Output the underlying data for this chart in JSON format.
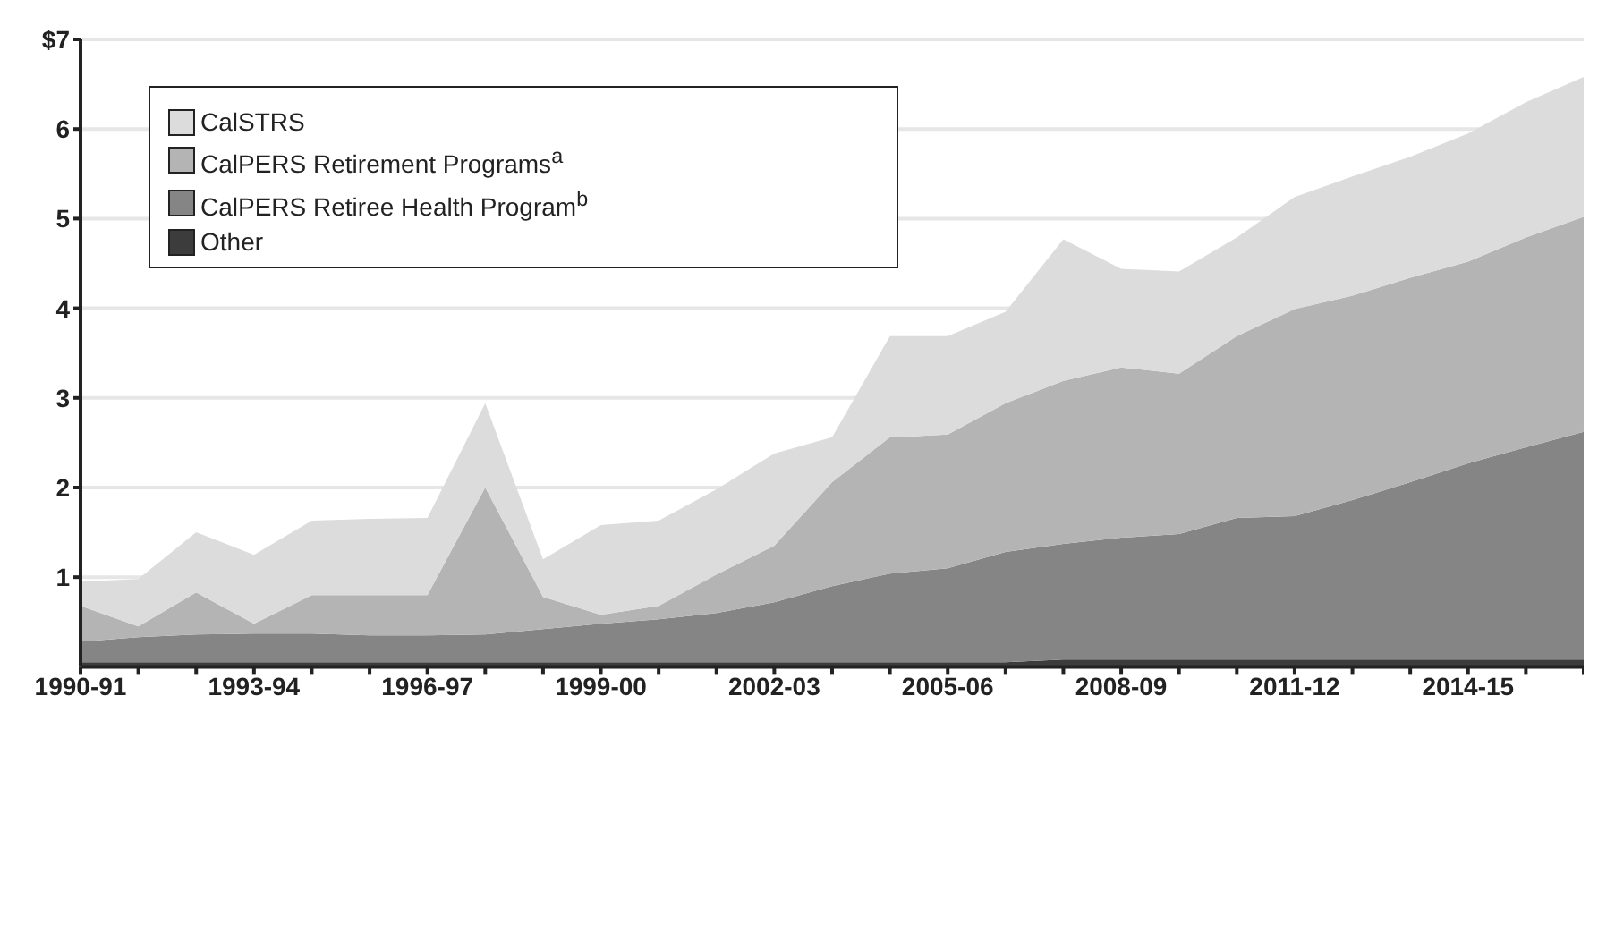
{
  "chart_data": {
    "type": "area",
    "stacked": true,
    "categories": [
      "1990-91",
      null,
      null,
      "1993-94",
      null,
      null,
      "1996-97",
      null,
      null,
      "1999-00",
      null,
      null,
      "2002-03",
      null,
      null,
      "2005-06",
      null,
      null,
      "2008-09",
      null,
      null,
      "2011-12",
      null,
      null,
      "2014-15",
      null,
      null
    ],
    "series": [
      {
        "name": "Other",
        "color": "#3c3c3c",
        "values": [
          0.05,
          0.05,
          0.05,
          0.05,
          0.05,
          0.05,
          0.05,
          0.05,
          0.05,
          0.05,
          0.05,
          0.05,
          0.05,
          0.05,
          0.05,
          0.05,
          0.05,
          0.08,
          0.08,
          0.08,
          0.08,
          0.08,
          0.08,
          0.08,
          0.08,
          0.08,
          0.08
        ]
      },
      {
        "name": "CalPERS Retiree Health Program$^{b}$",
        "color": "#858585",
        "values": [
          0.23,
          0.28,
          0.31,
          0.32,
          0.32,
          0.3,
          0.3,
          0.31,
          0.37,
          0.43,
          0.48,
          0.55,
          0.67,
          0.85,
          0.99,
          1.05,
          1.23,
          1.29,
          1.36,
          1.4,
          1.58,
          1.6,
          1.78,
          1.98,
          2.19,
          2.37,
          2.54
        ]
      },
      {
        "name": "CalPERS Retirement Programs$^{a}$",
        "color": "#b4b4b4",
        "values": [
          0.4,
          0.12,
          0.47,
          0.11,
          0.43,
          0.45,
          0.45,
          1.64,
          0.36,
          0.1,
          0.15,
          0.43,
          0.63,
          1.16,
          1.52,
          1.49,
          1.66,
          1.82,
          1.9,
          1.79,
          2.03,
          2.31,
          2.28,
          2.28,
          2.25,
          2.34,
          2.4
        ]
      },
      {
        "name": "CalSTRS",
        "color": "#dcdcdc",
        "values": [
          0.27,
          0.53,
          0.67,
          0.77,
          0.83,
          0.85,
          0.86,
          0.94,
          0.42,
          1.0,
          0.95,
          0.95,
          1.03,
          0.5,
          1.13,
          1.1,
          1.02,
          1.58,
          1.1,
          1.14,
          1.1,
          1.25,
          1.33,
          1.35,
          1.43,
          1.51,
          1.56
        ]
      }
    ],
    "ylim": [
      0,
      7
    ],
    "yticks": [
      1,
      2,
      3,
      4,
      5,
      6,
      {
        "value": 7,
        "label": "$7"
      }
    ],
    "grid": "y",
    "legend": "top left"
  }
}
